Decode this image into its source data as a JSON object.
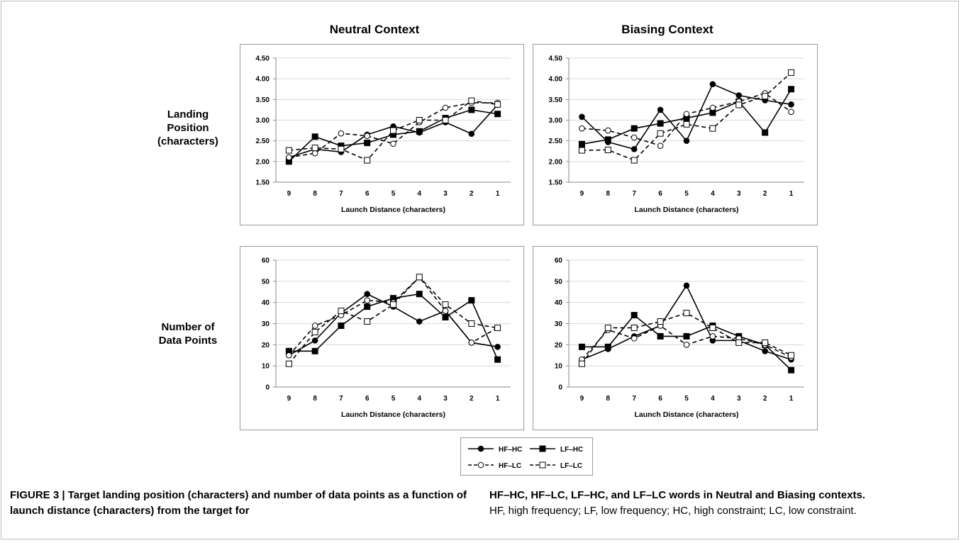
{
  "column_titles": [
    "Neutral Context",
    "Biasing Context"
  ],
  "row_labels": {
    "top": [
      "Landing",
      "Position",
      "(characters)"
    ],
    "bottom": [
      "Number of",
      "Data Points"
    ]
  },
  "caption": {
    "label": "FIGURE 3 | ",
    "bold_left": "Target landing position (characters) and number of data points as a function of launch distance (characters) from the target for",
    "bold_right": "HF–HC, HF–LC, LF–HC, and LF–LC words in Neutral and Biasing contexts.",
    "plain": "HF, high frequency; LF, low frequency; HC, high constraint; LC, low constraint."
  },
  "legend": [
    {
      "name": "HF–HC",
      "marker": "filled-circle",
      "dash": false
    },
    {
      "name": "LF–HC",
      "marker": "filled-square",
      "dash": false
    },
    {
      "name": "HF–LC",
      "marker": "open-circle",
      "dash": true
    },
    {
      "name": "LF–LC",
      "marker": "open-square",
      "dash": true
    }
  ],
  "chart_data": [
    {
      "id": "neutral-landing",
      "type": "line",
      "xlabel": "Launch Distance (characters)",
      "ylabel": "",
      "categories": [
        "9",
        "8",
        "7",
        "6",
        "5",
        "4",
        "3",
        "2",
        "1"
      ],
      "ylim": [
        1.5,
        4.5
      ],
      "yticks": [
        "1.50",
        "2.00",
        "2.50",
        "3.00",
        "3.50",
        "4.00",
        "4.50"
      ],
      "grid": true,
      "series": [
        {
          "name": "HF–HC",
          "values": [
            2.1,
            2.3,
            2.23,
            2.65,
            2.85,
            2.7,
            2.95,
            2.67,
            3.37
          ]
        },
        {
          "name": "LF–HC",
          "values": [
            2.0,
            2.6,
            2.38,
            2.45,
            2.65,
            2.73,
            3.05,
            3.25,
            3.15
          ]
        },
        {
          "name": "HF–LC",
          "values": [
            2.1,
            2.2,
            2.68,
            2.62,
            2.43,
            2.95,
            3.3,
            3.42,
            3.42
          ]
        },
        {
          "name": "LF–LC",
          "values": [
            2.27,
            2.33,
            2.3,
            2.03,
            2.75,
            3.0,
            3.0,
            3.47,
            3.38
          ]
        }
      ]
    },
    {
      "id": "biasing-landing",
      "type": "line",
      "xlabel": "Launch Distance (characters)",
      "ylabel": "",
      "categories": [
        "9",
        "8",
        "7",
        "6",
        "5",
        "4",
        "3",
        "2",
        "1"
      ],
      "ylim": [
        1.5,
        4.5
      ],
      "yticks": [
        "1.50",
        "2.00",
        "2.50",
        "3.00",
        "3.50",
        "4.00",
        "4.50"
      ],
      "grid": true,
      "series": [
        {
          "name": "HF–HC",
          "values": [
            3.08,
            2.47,
            2.3,
            3.25,
            2.5,
            3.87,
            3.6,
            3.48,
            3.38
          ]
        },
        {
          "name": "LF–HC",
          "values": [
            2.42,
            2.53,
            2.8,
            2.92,
            3.05,
            3.18,
            3.45,
            2.7,
            3.75
          ]
        },
        {
          "name": "HF–LC",
          "values": [
            2.8,
            2.75,
            2.58,
            2.38,
            3.15,
            3.3,
            3.45,
            3.65,
            3.2
          ]
        },
        {
          "name": "LF–LC",
          "values": [
            2.27,
            2.28,
            2.03,
            2.68,
            2.9,
            2.8,
            3.37,
            3.58,
            4.15
          ]
        }
      ]
    },
    {
      "id": "neutral-count",
      "type": "line",
      "xlabel": "Launch Distance (characters)",
      "ylabel": "",
      "categories": [
        "9",
        "8",
        "7",
        "6",
        "5",
        "4",
        "3",
        "2",
        "1"
      ],
      "ylim": [
        0,
        60
      ],
      "yticks": [
        "0",
        "10",
        "20",
        "30",
        "40",
        "50",
        "60"
      ],
      "grid": true,
      "series": [
        {
          "name": "HF–HC",
          "values": [
            15,
            22,
            35,
            44,
            38,
            31,
            36,
            21,
            19
          ]
        },
        {
          "name": "LF–HC",
          "values": [
            17,
            17,
            29,
            38,
            42,
            44,
            33,
            41,
            13
          ]
        },
        {
          "name": "HF–LC",
          "values": [
            15,
            29,
            34,
            41,
            40,
            52,
            36,
            21,
            28
          ]
        },
        {
          "name": "LF–LC",
          "values": [
            11,
            26,
            36,
            31,
            39,
            52,
            39,
            30,
            28
          ]
        }
      ]
    },
    {
      "id": "biasing-count",
      "type": "line",
      "xlabel": "Launch Distance (characters)",
      "ylabel": "",
      "categories": [
        "9",
        "8",
        "7",
        "6",
        "5",
        "4",
        "3",
        "2",
        "1"
      ],
      "ylim": [
        0,
        60
      ],
      "yticks": [
        "0",
        "10",
        "20",
        "30",
        "40",
        "50",
        "60"
      ],
      "grid": true,
      "series": [
        {
          "name": "HF–HC",
          "values": [
            13,
            18,
            24,
            29,
            48,
            22,
            22,
            17,
            13
          ]
        },
        {
          "name": "LF–HC",
          "values": [
            19,
            19,
            34,
            24,
            24,
            29,
            24,
            20,
            8
          ]
        },
        {
          "name": "HF–LC",
          "values": [
            13,
            27,
            23,
            29,
            20,
            24,
            23,
            20,
            14
          ]
        },
        {
          "name": "LF–LC",
          "values": [
            11,
            28,
            28,
            31,
            35,
            28,
            21,
            21,
            15
          ]
        }
      ]
    }
  ]
}
